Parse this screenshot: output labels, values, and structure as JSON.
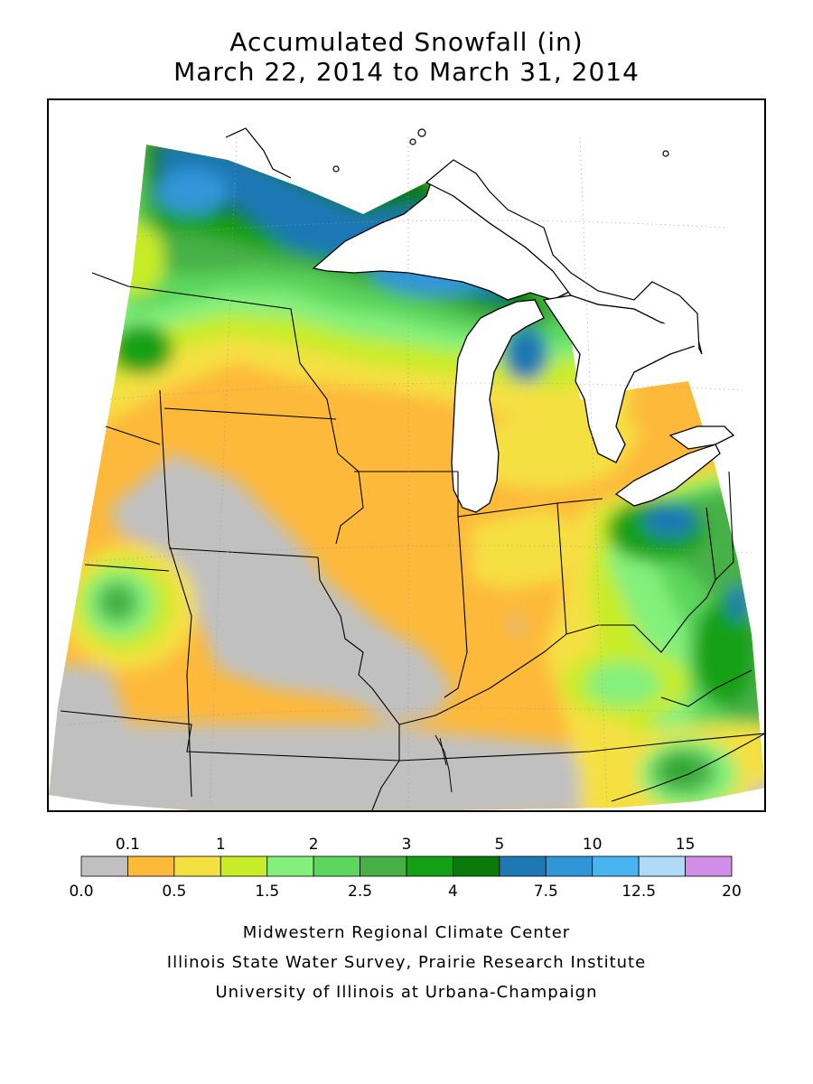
{
  "title": {
    "line1": "Accumulated Snowfall (in)",
    "line2": "March 22, 2014 to March 31, 2014"
  },
  "legend": {
    "top_labels": [
      "0.1",
      "1",
      "2",
      "3",
      "5",
      "10",
      "15"
    ],
    "bottom_labels": [
      "0.0",
      "0.5",
      "1.5",
      "2.5",
      "4",
      "7.5",
      "12.5",
      "20"
    ],
    "bins": [
      {
        "range": "0.0-0.1",
        "color": "#c0c0c0"
      },
      {
        "range": "0.1-0.5",
        "color": "#fdb93a"
      },
      {
        "range": "0.5-1",
        "color": "#f5e042"
      },
      {
        "range": "1-1.5",
        "color": "#c8ec28"
      },
      {
        "range": "1.5-2",
        "color": "#84f07c"
      },
      {
        "range": "2-2.5",
        "color": "#5cd65c"
      },
      {
        "range": "2.5-3",
        "color": "#46b046"
      },
      {
        "range": "3-4",
        "color": "#14a014"
      },
      {
        "range": "4-5",
        "color": "#0a7a0a"
      },
      {
        "range": "5-7.5",
        "color": "#1e78b4"
      },
      {
        "range": "7.5-10",
        "color": "#3096d8"
      },
      {
        "range": "10-12.5",
        "color": "#48b4f0"
      },
      {
        "range": "12.5-15",
        "color": "#b0daf8"
      },
      {
        "range": "15-20",
        "color": "#d08ee8"
      }
    ]
  },
  "credits": {
    "line1": "Midwestern Regional Climate Center",
    "line2": "Illinois State Water Survey, Prairie Research Institute",
    "line3": "University of Illinois at Urbana-Champaign"
  }
}
